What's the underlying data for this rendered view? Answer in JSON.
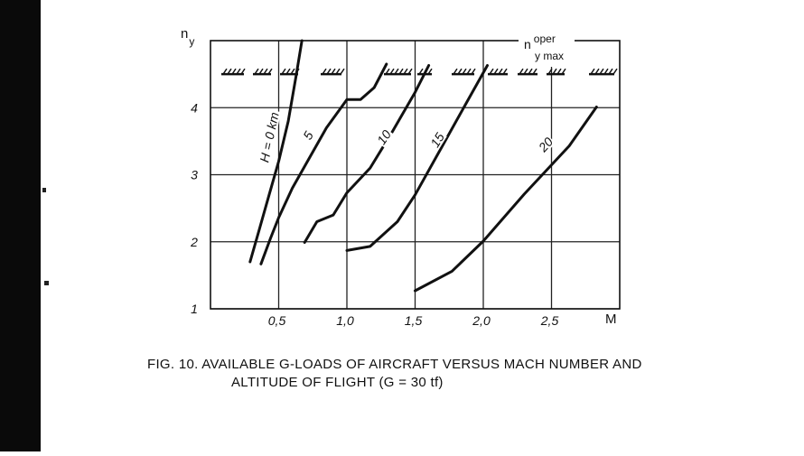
{
  "chart_data": {
    "type": "line",
    "x_label": "M",
    "y_label": {
      "main": "n",
      "sub": "y"
    },
    "limit": 4.5,
    "limit_label": {
      "main": "n",
      "sup": "oper",
      "sub": "y max"
    },
    "caption": [
      "FIG. 10. AVAILABLE G-LOADS OF AIRCRAFT VERSUS MACH NUMBER AND",
      "ALTITUDE OF FLIGHT (G = 30 tf)"
    ],
    "xlim": [
      0,
      3
    ],
    "ylim": [
      1,
      5
    ],
    "xticks": [
      {
        "value": 0.5,
        "label": "0,5"
      },
      {
        "value": 1,
        "label": "1,0"
      },
      {
        "value": 1.5,
        "label": "1,5"
      },
      {
        "value": 2,
        "label": "2,0"
      },
      {
        "value": 2.5,
        "label": "2,5"
      }
    ],
    "yticks": [
      1,
      2,
      3,
      4
    ],
    "grid": true,
    "series": [
      {
        "name": "H = 0 km",
        "color": "#111111",
        "x": [
          0.29,
          0.36,
          0.43,
          0.5,
          0.57,
          0.63,
          0.67
        ],
        "values": [
          1.7,
          2.2,
          2.7,
          3.2,
          3.8,
          4.5,
          5.0
        ]
      },
      {
        "name": "5",
        "color": "#111111",
        "x": [
          0.37,
          0.44,
          0.5,
          0.6,
          0.7,
          0.85,
          1.0,
          1.1,
          1.2,
          1.29
        ],
        "values": [
          1.67,
          2.05,
          2.36,
          2.8,
          3.16,
          3.7,
          4.12,
          4.12,
          4.3,
          4.65
        ]
      },
      {
        "name": "10",
        "color": "#111111",
        "x": [
          0.69,
          0.78,
          0.9,
          1.0,
          1.17,
          1.33,
          1.5,
          1.6
        ],
        "values": [
          1.99,
          2.3,
          2.4,
          2.73,
          3.1,
          3.63,
          4.23,
          4.63
        ]
      },
      {
        "name": "15",
        "color": "#111111",
        "x": [
          1.0,
          1.17,
          1.37,
          1.5,
          1.7,
          1.87,
          2.03
        ],
        "values": [
          1.87,
          1.93,
          2.3,
          2.7,
          3.43,
          4.05,
          4.63
        ]
      },
      {
        "name": "20",
        "color": "#111111",
        "x": [
          1.5,
          1.77,
          2.0,
          2.3,
          2.63,
          2.83
        ],
        "values": [
          1.27,
          1.56,
          2.01,
          2.71,
          3.43,
          4.01
        ]
      }
    ]
  }
}
